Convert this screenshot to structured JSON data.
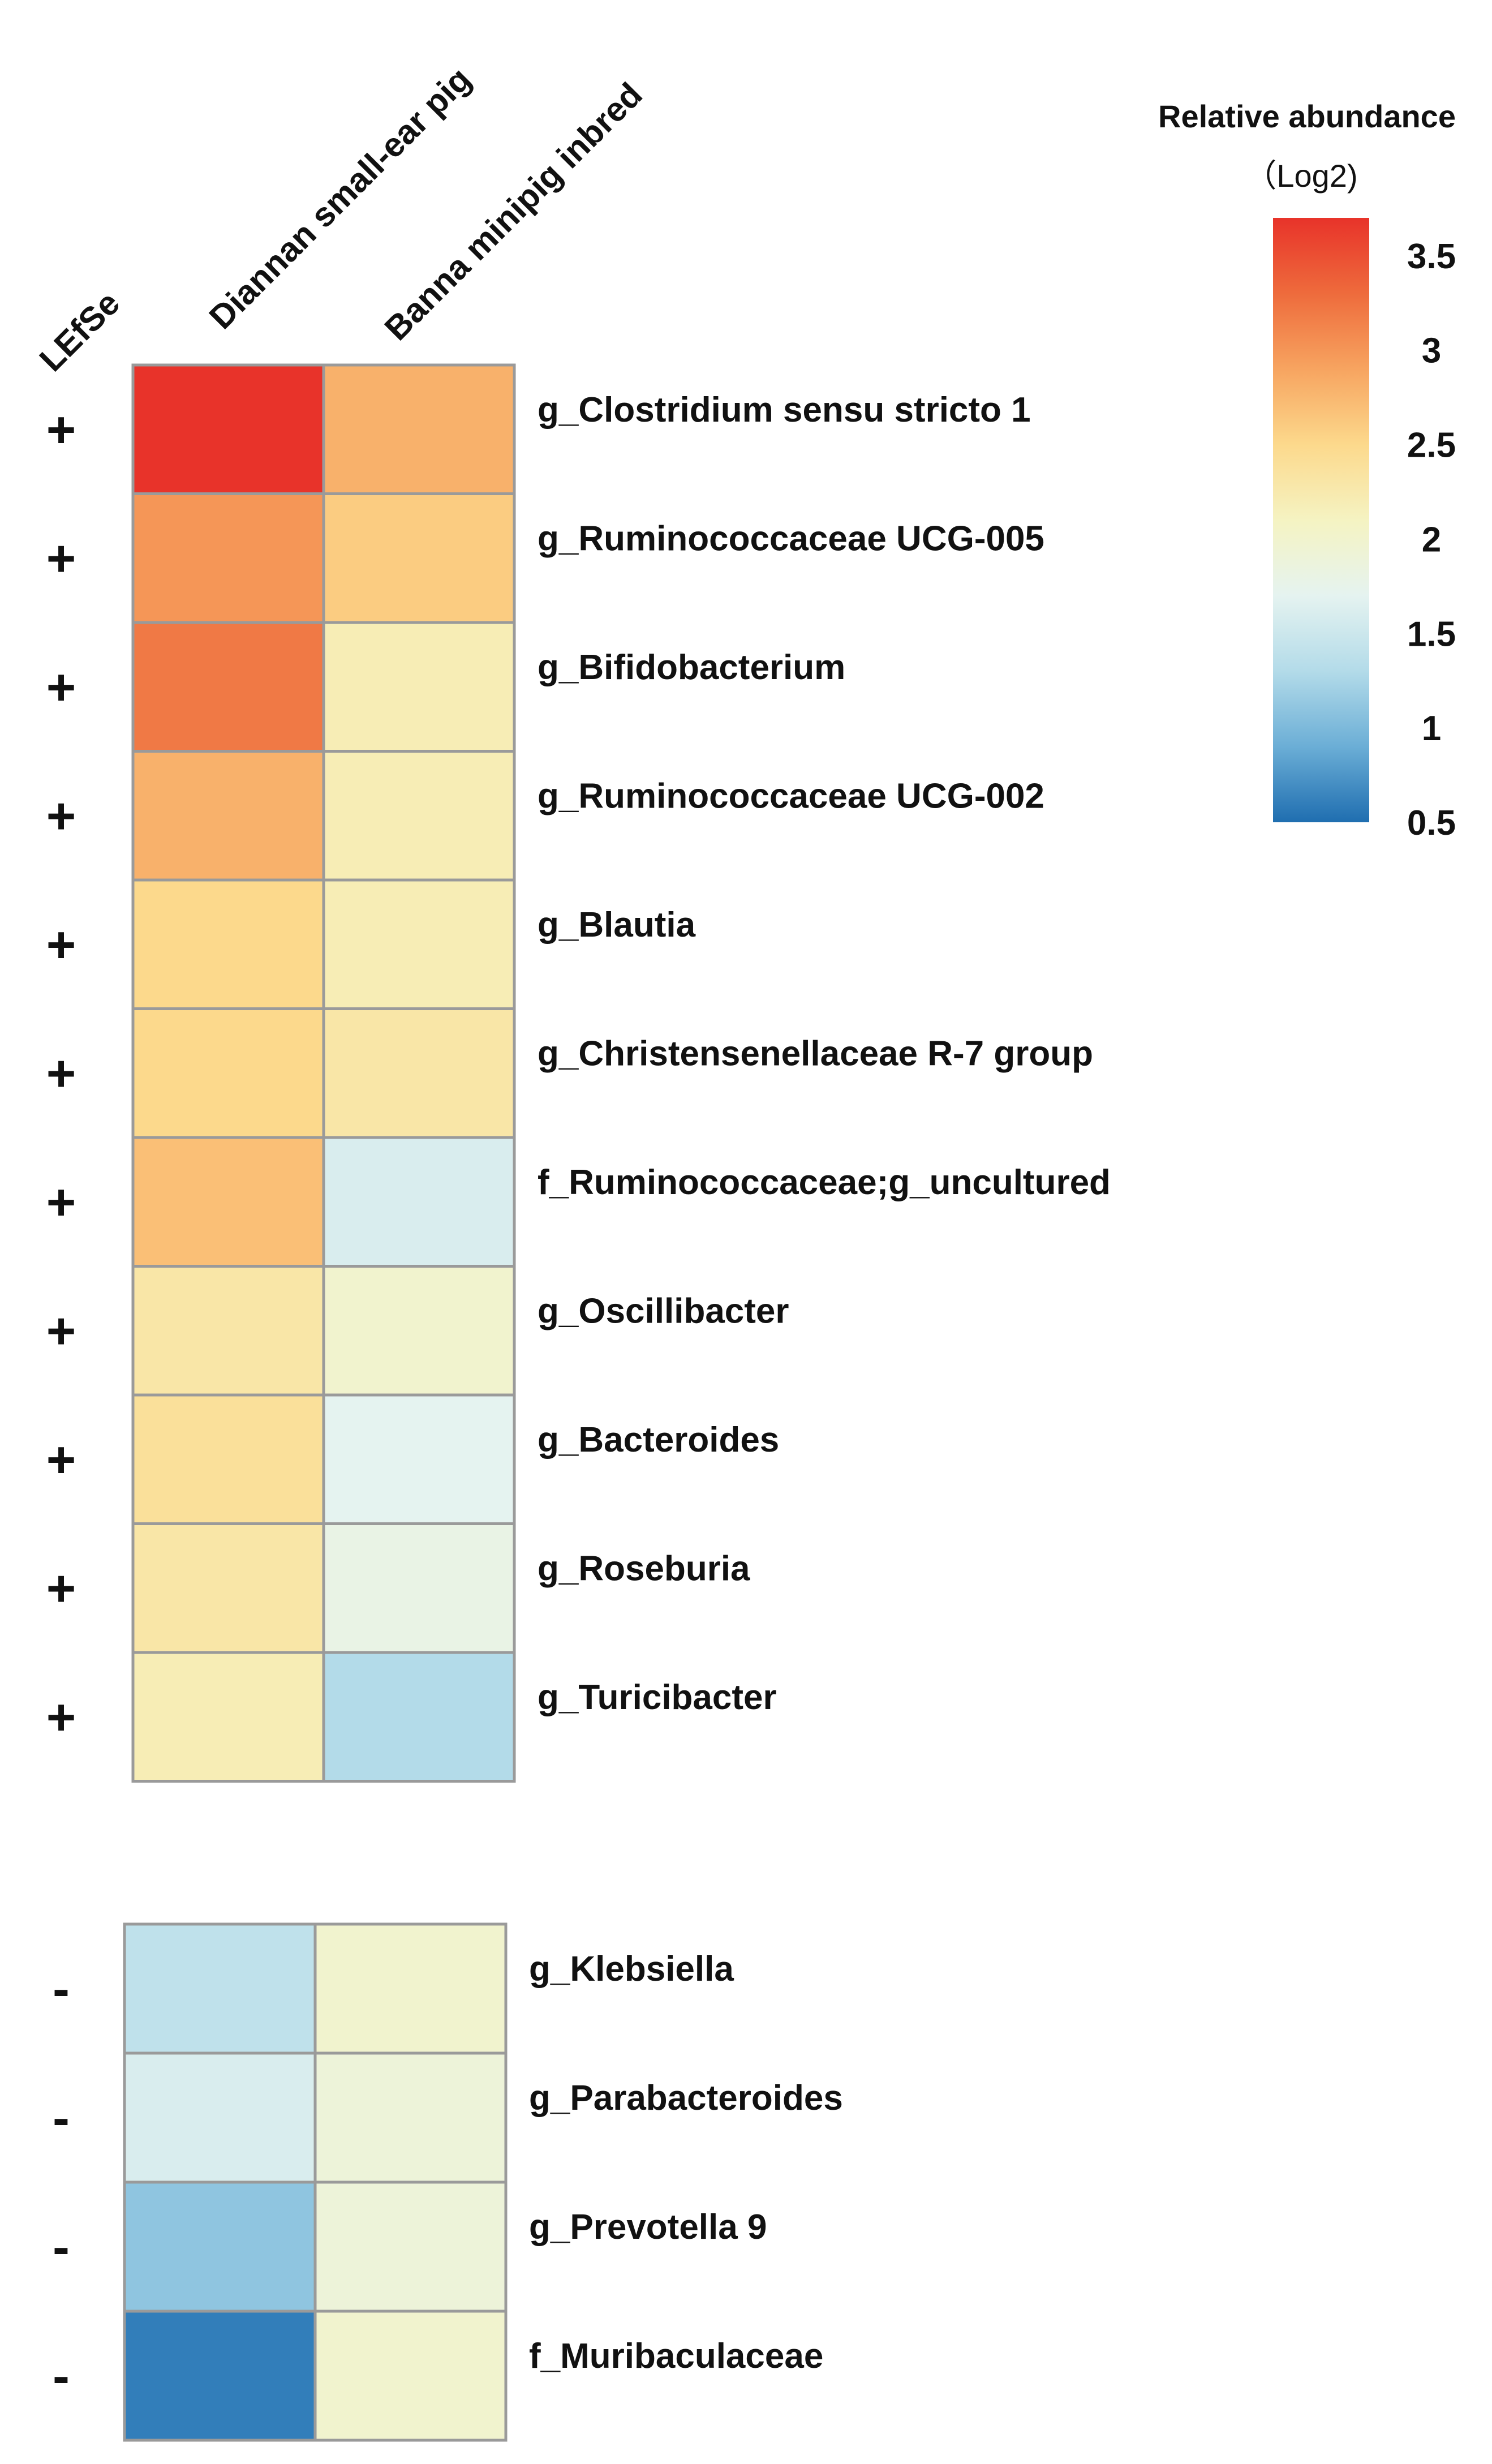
{
  "chart_data": {
    "type": "heatmap",
    "title": "",
    "lefse_header": "LEfSe",
    "columns": [
      "Diannan small-ear pig",
      "Banna minipig inbred"
    ],
    "groups": [
      {
        "rows": [
          {
            "taxon": "g_Clostridium sensu stricto 1",
            "lefse": "+",
            "values": [
              3.7,
              2.8
            ]
          },
          {
            "taxon": "g_Ruminococcaceae UCG-005",
            "lefse": "+",
            "values": [
              3.0,
              2.6
            ]
          },
          {
            "taxon": "g_Bifidobacterium",
            "lefse": "+",
            "values": [
              3.2,
              2.2
            ]
          },
          {
            "taxon": "g_Ruminococcaceae UCG-002",
            "lefse": "+",
            "values": [
              2.8,
              2.2
            ]
          },
          {
            "taxon": "g_Blautia",
            "lefse": "+",
            "values": [
              2.5,
              2.2
            ]
          },
          {
            "taxon": "g_Christensenellaceae R-7 group",
            "lefse": "+",
            "values": [
              2.5,
              2.3
            ]
          },
          {
            "taxon": "f_Ruminococcaceae;g_uncultured",
            "lefse": "+",
            "values": [
              2.7,
              1.6
            ]
          },
          {
            "taxon": "g_Oscillibacter",
            "lefse": "+",
            "values": [
              2.3,
              2.0
            ]
          },
          {
            "taxon": "g_Bacteroides",
            "lefse": "+",
            "values": [
              2.4,
              1.7
            ]
          },
          {
            "taxon": "g_Roseburia",
            "lefse": "+",
            "values": [
              2.3,
              1.8
            ]
          },
          {
            "taxon": "g_Turicibacter",
            "lefse": "+",
            "values": [
              2.2,
              1.3
            ]
          }
        ]
      },
      {
        "rows": [
          {
            "taxon": "g_Klebsiella",
            "lefse": "-",
            "values": [
              1.4,
              2.0
            ]
          },
          {
            "taxon": "g_Parabacteroides",
            "lefse": "-",
            "values": [
              1.6,
              1.9
            ]
          },
          {
            "taxon": "g_Prevotella 9",
            "lefse": "-",
            "values": [
              1.1,
              1.9
            ]
          },
          {
            "taxon": "f_Muribaculaceae",
            "lefse": "-",
            "values": [
              0.6,
              2.0
            ]
          }
        ]
      }
    ],
    "colorbar": {
      "title": "Relative abundance",
      "subtitle": "（Log2)",
      "range": [
        0.5,
        3.7
      ],
      "ticks": [
        3.5,
        3,
        2.5,
        2,
        1.5,
        1,
        0.5
      ],
      "tick_labels": [
        "3.5",
        "3",
        "2.5",
        "2",
        "1.5",
        "1",
        "0.5"
      ],
      "colors": [
        "#1f6eb0",
        "#6baed6",
        "#b3dbe9",
        "#e5f3f0",
        "#f5f3c2",
        "#fcd98c",
        "#f7a460",
        "#ee6b3c",
        "#e8332a"
      ]
    }
  }
}
